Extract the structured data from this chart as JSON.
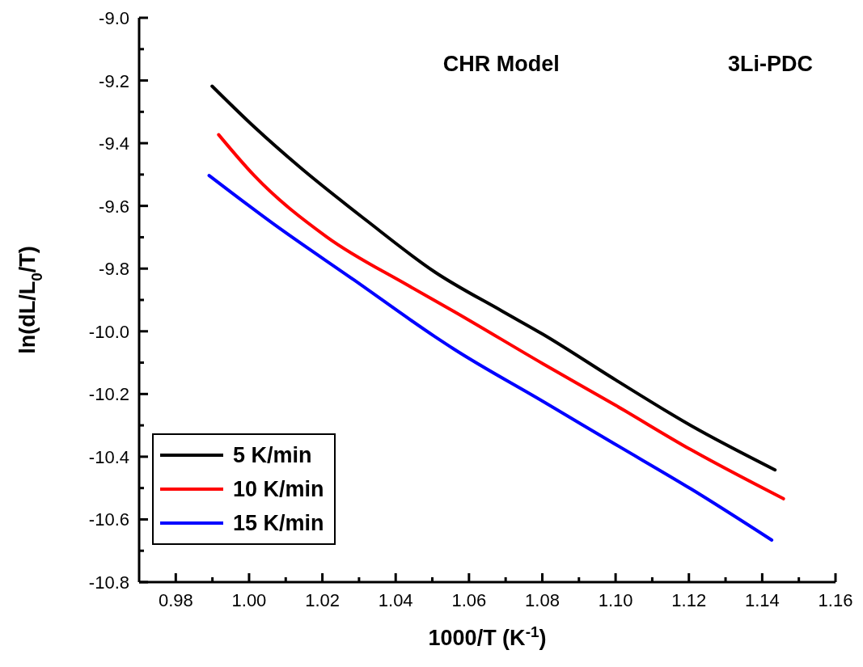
{
  "chart_data": {
    "type": "line",
    "xlabel": "1000/T (K$^{-1}$)",
    "ylabel": "ln(dL/L$_{0}$/T)",
    "annotations": [
      "CHR Model",
      "3Li-PDC"
    ],
    "xlim": [
      0.97,
      1.16
    ],
    "ylim": [
      -10.8,
      -9.0
    ],
    "xticks": [
      0.98,
      {
        "value": 0.99,
        "label": null
      },
      "1.00",
      {
        "value": 1.01,
        "label": null
      },
      1.02,
      {
        "value": 1.03,
        "label": null
      },
      1.04,
      {
        "value": 1.05,
        "label": null
      },
      1.06,
      {
        "value": 1.07,
        "label": null
      },
      1.08,
      {
        "value": 1.09,
        "label": null
      },
      "1.10",
      {
        "value": 1.11,
        "label": null
      },
      1.12,
      {
        "value": 1.13,
        "label": null
      },
      1.14,
      {
        "value": 1.15,
        "label": null
      },
      1.16
    ],
    "yticks": [
      -10.8,
      {
        "value": -10.7,
        "label": null
      },
      -10.6,
      {
        "value": -10.5,
        "label": null
      },
      -10.4,
      {
        "value": -10.3,
        "label": null
      },
      -10.2,
      {
        "value": -10.1,
        "label": null
      },
      "-10.0",
      {
        "value": -9.9,
        "label": null
      },
      -9.8,
      {
        "value": -9.7,
        "label": null
      },
      -9.6,
      {
        "value": -9.5,
        "label": null
      },
      -9.4,
      {
        "value": -9.3,
        "label": null
      },
      -9.2,
      {
        "value": -9.1,
        "label": null
      },
      "-9.0"
    ],
    "grid": false,
    "legend": "bottom left",
    "marker": "none",
    "line_style": "solid",
    "series": [
      {
        "name": "5 K/min",
        "color": "#000000",
        "x": [
          0.9899,
          1.0013,
          1.0138,
          1.0322,
          1.0507,
          1.0691,
          1.0801,
          1.1,
          1.1206,
          1.1435
        ],
        "values": [
          -9.218,
          -9.347,
          -9.476,
          -9.648,
          -9.811,
          -9.936,
          -10.009,
          -10.155,
          -10.301,
          -10.442
        ]
      },
      {
        "name": "10 K/min",
        "color": "#ff0000",
        "x": [
          0.9917,
          1.0013,
          1.0212,
          1.0433,
          1.0558,
          1.0801,
          1.1,
          1.1206,
          1.1458
        ],
        "values": [
          -9.373,
          -9.502,
          -9.699,
          -9.853,
          -9.936,
          -10.103,
          -10.236,
          -10.378,
          -10.534
        ]
      },
      {
        "name": "15 K/min",
        "color": "#0000ff",
        "x": [
          0.9891,
          1.0065,
          1.0286,
          1.0507,
          1.0558,
          1.0801,
          1.1,
          1.1206,
          1.1426
        ],
        "values": [
          -9.503,
          -9.656,
          -9.836,
          -10.017,
          -10.056,
          -10.223,
          -10.361,
          -10.503,
          -10.666
        ]
      }
    ]
  }
}
